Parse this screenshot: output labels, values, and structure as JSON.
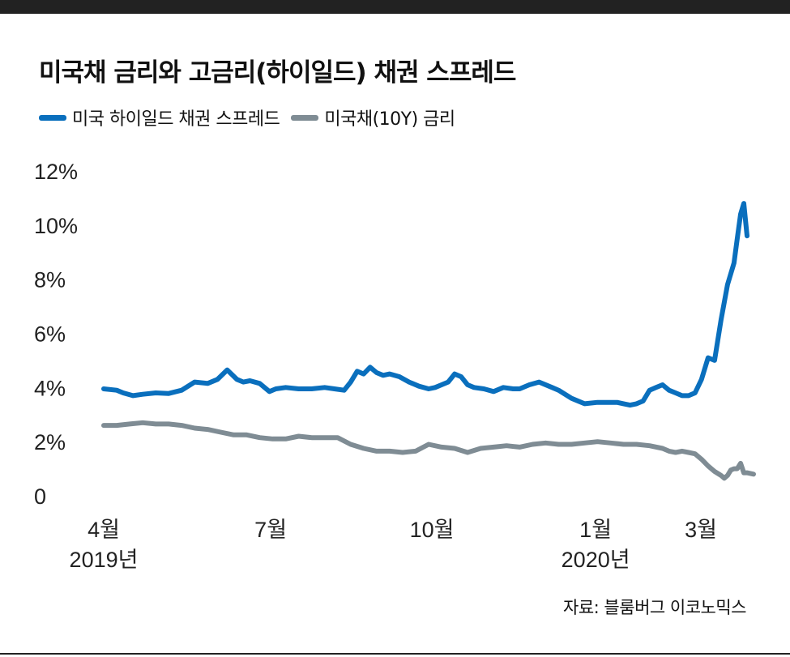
{
  "title": "미국채 금리와 고금리(하이일드) 채권 스프레드",
  "source": "자료: 블룸버그 이코노믹스",
  "colors": {
    "spread": "#0a6fbd",
    "treasury": "#7f8c94"
  },
  "chart_data": {
    "type": "line",
    "title": "미국채 금리와 고금리(하이일드) 채권 스프레드",
    "xlabel": "",
    "ylabel": "",
    "ylim": [
      0,
      12
    ],
    "xlim": [
      0,
      1.0
    ],
    "y_ticks": [
      {
        "value": 0,
        "label": "0"
      },
      {
        "value": 2,
        "label": "2%"
      },
      {
        "value": 4,
        "label": "4%"
      },
      {
        "value": 6,
        "label": "6%"
      },
      {
        "value": 8,
        "label": "8%"
      },
      {
        "value": 10,
        "label": "10%"
      },
      {
        "value": 12,
        "label": "12%"
      }
    ],
    "x_ticks": [
      {
        "pos": 0.0,
        "label": "4월",
        "sublabel": "2019년"
      },
      {
        "pos": 0.257,
        "label": "7월",
        "sublabel": ""
      },
      {
        "pos": 0.505,
        "label": "10월",
        "sublabel": ""
      },
      {
        "pos": 0.757,
        "label": "1월",
        "sublabel": "2020년"
      },
      {
        "pos": 0.919,
        "label": "3월",
        "sublabel": ""
      }
    ],
    "grid": false,
    "legend_position": "top-left",
    "series": [
      {
        "name": "미국 하이일드 채권 스프레드",
        "color": "#0a6fbd",
        "x": [
          0.0,
          0.02,
          0.03,
          0.045,
          0.06,
          0.08,
          0.1,
          0.12,
          0.14,
          0.16,
          0.175,
          0.19,
          0.205,
          0.215,
          0.225,
          0.24,
          0.255,
          0.265,
          0.28,
          0.3,
          0.32,
          0.34,
          0.355,
          0.37,
          0.38,
          0.39,
          0.4,
          0.41,
          0.42,
          0.43,
          0.44,
          0.455,
          0.47,
          0.485,
          0.5,
          0.51,
          0.52,
          0.53,
          0.54,
          0.55,
          0.56,
          0.57,
          0.585,
          0.6,
          0.615,
          0.63,
          0.64,
          0.655,
          0.67,
          0.69,
          0.7,
          0.72,
          0.74,
          0.76,
          0.78,
          0.79,
          0.8,
          0.81,
          0.82,
          0.83,
          0.84,
          0.85,
          0.86,
          0.87,
          0.88,
          0.89,
          0.9,
          0.91,
          0.92,
          0.93,
          0.94,
          0.95,
          0.96,
          0.97,
          0.975,
          0.98,
          0.985,
          0.99
        ],
        "values": [
          3.95,
          3.9,
          3.8,
          3.7,
          3.75,
          3.8,
          3.78,
          3.9,
          4.2,
          4.15,
          4.3,
          4.65,
          4.3,
          4.2,
          4.25,
          4.15,
          3.85,
          3.95,
          4.0,
          3.95,
          3.95,
          4.0,
          3.95,
          3.9,
          4.2,
          4.6,
          4.5,
          4.75,
          4.55,
          4.45,
          4.5,
          4.4,
          4.2,
          4.05,
          3.95,
          4.0,
          4.1,
          4.2,
          4.5,
          4.4,
          4.1,
          4.0,
          3.95,
          3.85,
          4.0,
          3.95,
          3.95,
          4.1,
          4.2,
          4.0,
          3.9,
          3.6,
          3.4,
          3.45,
          3.45,
          3.45,
          3.4,
          3.35,
          3.4,
          3.5,
          3.9,
          4.0,
          4.1,
          3.9,
          3.8,
          3.7,
          3.7,
          3.8,
          4.3,
          5.1,
          5.0,
          6.5,
          7.8,
          8.6,
          9.5,
          10.4,
          10.8,
          9.6
        ]
      },
      {
        "name": "미국채(10Y) 금리",
        "color": "#7f8c94",
        "x": [
          0.0,
          0.02,
          0.04,
          0.06,
          0.08,
          0.1,
          0.12,
          0.14,
          0.16,
          0.18,
          0.2,
          0.22,
          0.24,
          0.26,
          0.28,
          0.3,
          0.32,
          0.34,
          0.36,
          0.38,
          0.4,
          0.42,
          0.44,
          0.46,
          0.48,
          0.5,
          0.52,
          0.54,
          0.56,
          0.58,
          0.6,
          0.62,
          0.64,
          0.66,
          0.68,
          0.7,
          0.72,
          0.74,
          0.76,
          0.78,
          0.8,
          0.82,
          0.84,
          0.86,
          0.87,
          0.88,
          0.89,
          0.9,
          0.91,
          0.92,
          0.93,
          0.94,
          0.95,
          0.955,
          0.96,
          0.965,
          0.97,
          0.975,
          0.98,
          0.985,
          0.99,
          1.0
        ],
        "values": [
          2.6,
          2.6,
          2.65,
          2.7,
          2.65,
          2.65,
          2.6,
          2.5,
          2.45,
          2.35,
          2.25,
          2.25,
          2.15,
          2.1,
          2.1,
          2.2,
          2.15,
          2.15,
          2.15,
          1.9,
          1.75,
          1.65,
          1.65,
          1.6,
          1.65,
          1.9,
          1.8,
          1.75,
          1.6,
          1.75,
          1.8,
          1.85,
          1.8,
          1.9,
          1.95,
          1.9,
          1.9,
          1.95,
          2.0,
          1.95,
          1.9,
          1.9,
          1.85,
          1.75,
          1.65,
          1.6,
          1.65,
          1.6,
          1.55,
          1.35,
          1.1,
          0.9,
          0.75,
          0.65,
          0.75,
          0.95,
          1.0,
          1.0,
          1.2,
          0.85,
          0.85,
          0.8
        ]
      }
    ]
  }
}
